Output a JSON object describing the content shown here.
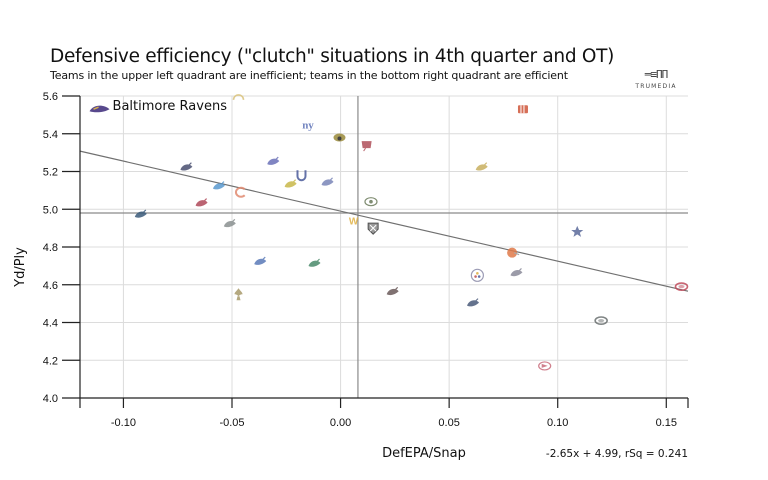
{
  "header": {
    "title": "Defensive efficiency (\"clutch\" situations in 4th quarter and OT)",
    "subtitle": "Teams in the upper left quadrant are inefficient; teams in the bottom right quadrant are efficient",
    "brand_mark": "═≡ПП",
    "brand_name": "TRUMEDIA"
  },
  "chart_data": {
    "type": "scatter",
    "title": "Defensive efficiency (\"clutch\" situations in 4th quarter and OT)",
    "subtitle": "Teams in the upper left quadrant are inefficient; teams in the bottom right quadrant are efficient",
    "xlabel": "DefEPA/Snap",
    "ylabel": "Yd/Ply",
    "xlim": [
      -0.12,
      0.16
    ],
    "ylim": [
      4.0,
      5.6
    ],
    "xticks": [
      -0.1,
      -0.05,
      0.0,
      0.05,
      0.1,
      0.15
    ],
    "xtick_labels": [
      "-0.10",
      "-0.05",
      "0.00",
      "0.05",
      "0.10",
      "0.15"
    ],
    "yticks": [
      4.0,
      4.2,
      4.4,
      4.6,
      4.8,
      5.0,
      5.2,
      5.4,
      5.6
    ],
    "ytick_labels": [
      "4.0",
      "4.2",
      "4.4",
      "4.6",
      "4.8",
      "5.0",
      "5.2",
      "5.4",
      "5.6"
    ],
    "grid": true,
    "mean_lines": {
      "x": 0.008,
      "y": 4.98
    },
    "regression": {
      "slope": -2.65,
      "intercept": 4.99,
      "rsq": 0.241,
      "label": "-2.65x + 4.99, rSq = 0.241"
    },
    "annotation": {
      "team": "Baltimore Ravens",
      "text": "Baltimore Ravens"
    },
    "points": [
      {
        "team": "Baltimore Ravens",
        "abbr": "BAL",
        "x": -0.111,
        "y": 5.53,
        "color": "#3b2a7a",
        "icon": "raven"
      },
      {
        "team": "Los Angeles Chargers",
        "abbr": "LAC",
        "x": -0.047,
        "y": 5.59,
        "color": "#d9c27a",
        "icon": "bolt"
      },
      {
        "team": "New York Giants",
        "abbr": "NYG",
        "x": -0.015,
        "y": 5.45,
        "color": "#5a6fb5",
        "icon": "ny"
      },
      {
        "team": "Jacksonville Jaguars",
        "abbr": "JAX",
        "x": -0.0005,
        "y": 5.38,
        "color": "#9a8a3a",
        "icon": "jaguar"
      },
      {
        "team": "Tampa Bay Buccaneers",
        "abbr": "TB",
        "x": 0.012,
        "y": 5.34,
        "color": "#b0505a",
        "icon": "flag"
      },
      {
        "team": "Cincinnati Bengals",
        "abbr": "CIN",
        "x": 0.084,
        "y": 5.53,
        "color": "#d0563a",
        "icon": "stripes"
      },
      {
        "team": "Houston Texans",
        "abbr": "HOU",
        "x": -0.071,
        "y": 5.22,
        "color": "#4a5070",
        "icon": "bull"
      },
      {
        "team": "Buffalo Bills",
        "abbr": "BUF",
        "x": -0.031,
        "y": 5.25,
        "color": "#6a70b8",
        "icon": "buffalo"
      },
      {
        "team": "Indianapolis Colts",
        "abbr": "IND",
        "x": -0.018,
        "y": 5.18,
        "color": "#4a5a9a",
        "icon": "horseshoe"
      },
      {
        "team": "Los Angeles Rams",
        "abbr": "LAR",
        "x": -0.023,
        "y": 5.13,
        "color": "#c8b84a",
        "icon": "ram"
      },
      {
        "team": "Tennessee Titans",
        "abbr": "TEN",
        "x": -0.006,
        "y": 5.14,
        "color": "#7a86b8",
        "icon": "titan"
      },
      {
        "team": "Miami Dolphins",
        "abbr": "MIA",
        "x": -0.056,
        "y": 5.12,
        "color": "#5a9ad0",
        "icon": "dolphin"
      },
      {
        "team": "Chicago Bears",
        "abbr": "CHI",
        "x": -0.046,
        "y": 5.09,
        "color": "#e08a70",
        "icon": "c"
      },
      {
        "team": "Minnesota Vikings",
        "abbr": "MIN",
        "x": 0.065,
        "y": 5.22,
        "color": "#c8b060",
        "icon": "viking"
      },
      {
        "team": "Arizona Cardinals",
        "abbr": "ARI",
        "x": -0.064,
        "y": 5.03,
        "color": "#b04a5a",
        "icon": "cardinal"
      },
      {
        "team": "Green Bay Packers",
        "abbr": "GB",
        "x": 0.014,
        "y": 5.04,
        "color": "#6a7a5a",
        "icon": "g"
      },
      {
        "team": "Carolina Panthers",
        "abbr": "CAR",
        "x": -0.092,
        "y": 4.97,
        "color": "#3a5a7a",
        "icon": "panther"
      },
      {
        "team": "Washington Commanders",
        "abbr": "WAS",
        "x": 0.006,
        "y": 4.94,
        "color": "#e0b040",
        "icon": "w"
      },
      {
        "team": "Philadelphia Eagles",
        "abbr": "PHI",
        "x": -0.051,
        "y": 4.92,
        "color": "#8a9090",
        "icon": "eagle"
      },
      {
        "team": "Las Vegas Raiders",
        "abbr": "LV",
        "x": 0.015,
        "y": 4.9,
        "color": "#555555",
        "icon": "shield"
      },
      {
        "team": "Dallas Cowboys",
        "abbr": "DAL",
        "x": 0.109,
        "y": 4.88,
        "color": "#5a6a9a",
        "icon": "star"
      },
      {
        "team": "Cleveland Browns",
        "abbr": "CLE",
        "x": 0.079,
        "y": 4.77,
        "color": "#e07a4a",
        "icon": "helmet"
      },
      {
        "team": "Detroit Lions",
        "abbr": "DET",
        "x": -0.037,
        "y": 4.72,
        "color": "#5a7ab8",
        "icon": "lion"
      },
      {
        "team": "New York Jets",
        "abbr": "NYJ",
        "x": -0.012,
        "y": 4.71,
        "color": "#4a8a6a",
        "icon": "jet"
      },
      {
        "team": "Pittsburgh Steelers",
        "abbr": "PIT",
        "x": 0.063,
        "y": 4.65,
        "color": "#8a8aa8",
        "icon": "steeler"
      },
      {
        "team": "Denver Broncos",
        "abbr": "DEN",
        "x": 0.081,
        "y": 4.66,
        "color": "#8a8a9a",
        "icon": "horse"
      },
      {
        "team": "Atlanta Falcons",
        "abbr": "ATL",
        "x": 0.024,
        "y": 4.56,
        "color": "#6a5a5a",
        "icon": "falcon"
      },
      {
        "team": "New Orleans Saints",
        "abbr": "NO",
        "x": -0.047,
        "y": 4.55,
        "color": "#a89a6a",
        "icon": "fleur"
      },
      {
        "team": "New England Patriots",
        "abbr": "NE",
        "x": 0.061,
        "y": 4.5,
        "color": "#4a5a7a",
        "icon": "patriot"
      },
      {
        "team": "San Francisco 49ers",
        "abbr": "SF",
        "x": 0.157,
        "y": 4.59,
        "color": "#c04a5a",
        "icon": "oval"
      },
      {
        "team": "Seattle Seahawks",
        "abbr": "SEA",
        "x": 0.12,
        "y": 4.41,
        "color": "#6a7070",
        "icon": "oval"
      },
      {
        "team": "Kansas City Chiefs",
        "abbr": "KC",
        "x": 0.094,
        "y": 4.17,
        "color": "#c86a7a",
        "icon": "arrowhead"
      }
    ]
  }
}
